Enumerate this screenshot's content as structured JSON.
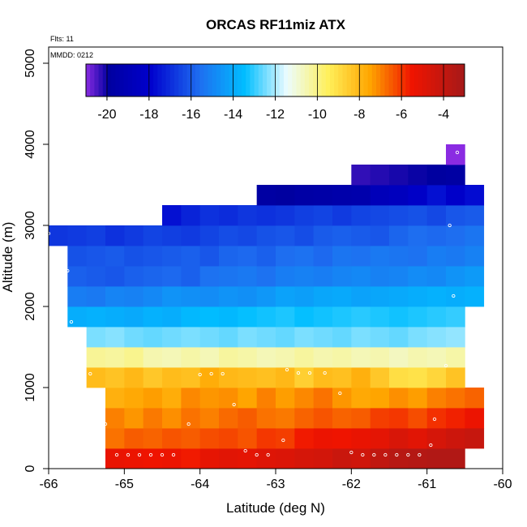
{
  "chart_data": {
    "type": "heatmap",
    "title": "ORCAS RF11miz ATX",
    "flts_label": "Flts: 11",
    "mmdd_label": "MMDD: 0212",
    "xlabel": "Latitude (deg N)",
    "ylabel": "Altitude (m)",
    "xlim": [
      -66,
      -60
    ],
    "ylim": [
      0,
      5200
    ],
    "x_ticks": [
      -66,
      -65,
      -64,
      -63,
      -62,
      -61,
      -60
    ],
    "y_ticks": [
      0,
      1000,
      2000,
      3000,
      4000,
      5000
    ],
    "grid": false,
    "colorbar": {
      "position": "top",
      "range": [
        -21,
        -3
      ],
      "ticks": [
        -20,
        -18,
        -16,
        -14,
        -12,
        -10,
        -8,
        -6,
        -4
      ]
    },
    "cell_width_deg": 0.25,
    "cell_height_m": 250,
    "rows": [
      {
        "alt_bottom": 0,
        "lat_start": -65.25,
        "values": [
          -5.3,
          -5.4,
          -5.5,
          -5.4,
          -5.6,
          -5.2,
          -5.0,
          -5.1,
          -4.9,
          -4.8,
          -4.6,
          -4.5,
          -4.2,
          -4.4,
          -3.9,
          -3.6,
          -3.5,
          -3.4,
          -3.4
        ]
      },
      {
        "alt_bottom": 250,
        "lat_start": -65.25,
        "values": [
          -6.8,
          -6.5,
          -6.6,
          -6.4,
          -6.5,
          -6.3,
          -6.2,
          -6.4,
          -6.0,
          -6.1,
          -5.6,
          -5.4,
          -5.5,
          -5.3,
          -5.1,
          -4.7,
          -5.0,
          -4.6,
          -4.3,
          -4.1
        ]
      },
      {
        "alt_bottom": 500,
        "lat_start": -65.25,
        "values": [
          -7.0,
          -7.3,
          -6.9,
          -7.2,
          -6.8,
          -7.0,
          -6.7,
          -6.5,
          -6.8,
          -6.9,
          -6.6,
          -6.4,
          -6.6,
          -6.5,
          -6.1,
          -6.0,
          -6.3,
          -5.9,
          -5.7,
          -5.4
        ]
      },
      {
        "alt_bottom": 750,
        "lat_start": -65.25,
        "values": [
          -7.8,
          -7.6,
          -7.4,
          -7.7,
          -7.1,
          -7.3,
          -7.2,
          -7.5,
          -7.0,
          -7.4,
          -7.1,
          -6.8,
          -7.3,
          -7.6,
          -7.5,
          -7.2,
          -7.4,
          -7.0,
          -6.8,
          -6.6
        ]
      },
      {
        "alt_bottom": 1000,
        "lat_start": -65.5,
        "values": [
          -8.1,
          -8.3,
          -8.0,
          -8.4,
          -8.1,
          -8.2,
          -7.7,
          -8.0,
          -8.1,
          -8.2,
          -8.0,
          -8.6,
          -8.1,
          -8.2,
          -7.8,
          -8.4,
          -9.0,
          -9.1,
          -8.8,
          -8.3
        ]
      },
      {
        "alt_bottom": 1250,
        "lat_start": -65.5,
        "values": [
          -10.2,
          -10.3,
          -10.1,
          -10.5,
          -10.6,
          -10.4,
          -10.6,
          -10.3,
          -10.4,
          -10.6,
          -10.5,
          -10.3,
          -10.5,
          -10.4,
          -10.6,
          -10.5,
          -10.7,
          -10.5,
          -10.6,
          -10.4
        ]
      },
      {
        "alt_bottom": 1500,
        "lat_start": -65.5,
        "values": [
          -12.4,
          -12.3,
          -12.5,
          -12.6,
          -12.5,
          -12.4,
          -12.5,
          -12.6,
          -12.4,
          -12.5,
          -12.6,
          -12.4,
          -12.5,
          -12.6,
          -12.4,
          -12.5,
          -12.6,
          -12.4,
          -12.3,
          -12.2
        ]
      },
      {
        "alt_bottom": 1750,
        "lat_start": -65.75,
        "values": [
          -13.9,
          -13.8,
          -13.9,
          -14.0,
          -13.8,
          -13.9,
          -13.6,
          -13.5,
          -13.6,
          -13.4,
          -13.3,
          -13.2,
          -13.4,
          -13.3,
          -13.2,
          -13.1,
          -13.2,
          -13.3,
          -13.2,
          -13.1,
          -13.0
        ]
      },
      {
        "alt_bottom": 2000,
        "lat_start": -65.75,
        "values": [
          -15.2,
          -15.3,
          -15.0,
          -15.1,
          -14.9,
          -14.6,
          -14.7,
          -14.8,
          -14.6,
          -14.7,
          -14.5,
          -14.2,
          -14.3,
          -14.1,
          -14.0,
          -14.2,
          -14.1,
          -14.0,
          -13.9,
          -13.8,
          -13.9,
          -13.8
        ]
      },
      {
        "alt_bottom": 2250,
        "lat_start": -65.75,
        "values": [
          -15.9,
          -16.0,
          -16.1,
          -15.9,
          -15.8,
          -15.7,
          -15.9,
          -15.5,
          -15.4,
          -15.3,
          -15.5,
          -15.2,
          -15.1,
          -15.2,
          -15.0,
          -14.9,
          -15.1,
          -15.0,
          -14.8,
          -14.9,
          -14.6,
          -14.4
        ]
      },
      {
        "alt_bottom": 2500,
        "lat_start": -65.75,
        "values": [
          -16.2,
          -16.1,
          -16.0,
          -16.2,
          -16.1,
          -16.0,
          -15.9,
          -16.1,
          -15.8,
          -15.7,
          -15.9,
          -15.6,
          -15.5,
          -15.7,
          -15.4,
          -15.5,
          -15.3,
          -15.4,
          -15.5,
          -15.2,
          -15.3,
          -15.1
        ]
      },
      {
        "alt_bottom": 2750,
        "lat_start": -66.0,
        "values": [
          -16.8,
          -16.7,
          -16.6,
          -16.9,
          -16.7,
          -16.5,
          -16.6,
          -16.7,
          -16.5,
          -16.3,
          -16.4,
          -16.2,
          -16.1,
          -16.3,
          -16.0,
          -15.9,
          -16.0,
          -16.1,
          -15.8,
          -15.6,
          -15.7,
          -15.6,
          -15.4
        ]
      },
      {
        "alt_bottom": 3000,
        "lat_start": -64.5,
        "values": [
          -17.6,
          -17.2,
          -16.9,
          -17.0,
          -16.8,
          -16.9,
          -16.8,
          -16.6,
          -16.5,
          -16.7,
          -16.5,
          -16.4,
          -16.3,
          -16.2,
          -16.4,
          -16.1,
          -16.0
        ]
      },
      {
        "alt_bottom": 3250,
        "lat_start": -63.25,
        "values": [
          -19.8,
          -19.9,
          -19.7,
          -19.6,
          -19.5,
          -19.4,
          -18.8,
          -18.6,
          -18.2,
          -17.6,
          -18.1,
          -17.7
        ]
      },
      {
        "alt_bottom": 3500,
        "lat_start": -62.0,
        "values": [
          -20.3,
          -20.2,
          -20.1,
          -20.0,
          -19.9,
          -19.8
        ]
      },
      {
        "alt_bottom": 3750,
        "lat_start": -60.75,
        "values": [
          -21.5
        ]
      }
    ],
    "points": [
      [
        -65.1,
        170
      ],
      [
        -64.95,
        170
      ],
      [
        -64.8,
        170
      ],
      [
        -64.65,
        170
      ],
      [
        -64.5,
        170
      ],
      [
        -64.35,
        170
      ],
      [
        -63.4,
        220
      ],
      [
        -63.25,
        170
      ],
      [
        -63.1,
        170
      ],
      [
        -62.0,
        200
      ],
      [
        -61.85,
        170
      ],
      [
        -61.7,
        170
      ],
      [
        -61.55,
        170
      ],
      [
        -61.4,
        170
      ],
      [
        -61.25,
        170
      ],
      [
        -61.1,
        170
      ],
      [
        -60.95,
        290
      ],
      [
        -60.9,
        610
      ],
      [
        -65.25,
        550
      ],
      [
        -64.15,
        550
      ],
      [
        -62.9,
        350
      ],
      [
        -63.55,
        790
      ],
      [
        -62.15,
        930
      ],
      [
        -65.45,
        1170
      ],
      [
        -64.0,
        1160
      ],
      [
        -63.85,
        1170
      ],
      [
        -63.7,
        1170
      ],
      [
        -62.85,
        1220
      ],
      [
        -62.7,
        1180
      ],
      [
        -62.55,
        1180
      ],
      [
        -62.35,
        1180
      ],
      [
        -65.85,
        2150
      ],
      [
        -65.7,
        1810
      ],
      [
        -66.0,
        2900
      ],
      [
        -65.75,
        2440
      ],
      [
        -60.65,
        2130
      ],
      [
        -60.7,
        3000
      ],
      [
        -60.75,
        1270
      ],
      [
        -60.6,
        3900
      ]
    ]
  }
}
